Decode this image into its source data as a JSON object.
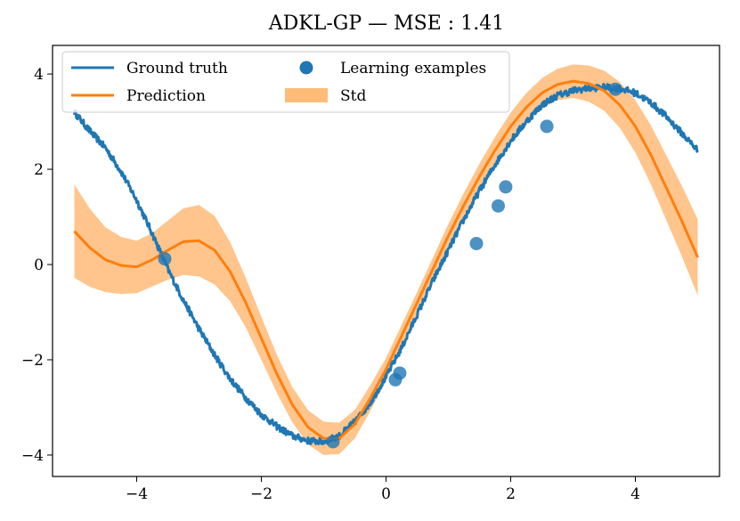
{
  "chart_data": {
    "type": "line",
    "title": "ADKL-GP — MSE : 1.41",
    "xlabel": "",
    "ylabel": "",
    "xlim": [
      -5.35,
      5.35
    ],
    "ylim": [
      -4.45,
      4.6
    ],
    "xticks": [
      -4,
      -2,
      0,
      2,
      4
    ],
    "yticks": [
      -4,
      -2,
      0,
      2,
      4
    ],
    "xtick_labels": [
      "−4",
      "−2",
      "0",
      "2",
      "4"
    ],
    "ytick_labels": [
      "−4",
      "−2",
      "0",
      "2",
      "4"
    ],
    "grid": false,
    "legend_position": "top-left",
    "colors": {
      "ground_truth": "#1f77b4",
      "prediction": "#ff7f0e",
      "std_fill": "#ffbb78",
      "points": "#1f77b4"
    },
    "legend": [
      {
        "key": "ground_truth",
        "label": "Ground truth",
        "kind": "line"
      },
      {
        "key": "examples",
        "label": "Learning examples",
        "kind": "marker"
      },
      {
        "key": "prediction",
        "label": "Prediction",
        "kind": "line"
      },
      {
        "key": "std",
        "label": "Std",
        "kind": "patch"
      }
    ],
    "ground_truth": {
      "x": [
        -5.0,
        -4.75,
        -4.5,
        -4.25,
        -4.0,
        -3.75,
        -3.5,
        -3.25,
        -3.0,
        -2.75,
        -2.5,
        -2.25,
        -2.0,
        -1.75,
        -1.5,
        -1.25,
        -1.0,
        -0.75,
        -0.5,
        -0.25,
        0.0,
        0.25,
        0.5,
        0.75,
        1.0,
        1.25,
        1.5,
        1.75,
        2.0,
        2.25,
        2.5,
        2.75,
        3.0,
        3.25,
        3.5,
        3.75,
        4.0,
        4.25,
        4.5,
        4.75,
        5.0
      ],
      "y": [
        3.2,
        2.8,
        2.45,
        1.95,
        1.35,
        0.65,
        -0.1,
        -0.75,
        -1.35,
        -1.9,
        -2.4,
        -2.8,
        -3.15,
        -3.4,
        -3.6,
        -3.7,
        -3.72,
        -3.6,
        -3.3,
        -2.9,
        -2.35,
        -1.75,
        -1.05,
        -0.35,
        0.3,
        0.95,
        1.55,
        2.1,
        2.6,
        3.0,
        3.35,
        3.55,
        3.65,
        3.7,
        3.72,
        3.7,
        3.6,
        3.4,
        3.1,
        2.75,
        2.4
      ]
    },
    "prediction": {
      "x": [
        -5.0,
        -4.75,
        -4.5,
        -4.25,
        -4.0,
        -3.75,
        -3.5,
        -3.25,
        -3.0,
        -2.75,
        -2.5,
        -2.25,
        -2.0,
        -1.75,
        -1.5,
        -1.25,
        -1.0,
        -0.75,
        -0.5,
        -0.25,
        0.0,
        0.25,
        0.5,
        0.75,
        1.0,
        1.25,
        1.5,
        1.75,
        2.0,
        2.25,
        2.5,
        2.75,
        3.0,
        3.25,
        3.5,
        3.75,
        4.0,
        4.25,
        4.5,
        4.75,
        5.0
      ],
      "mean": [
        0.7,
        0.35,
        0.1,
        -0.02,
        -0.05,
        0.1,
        0.3,
        0.48,
        0.5,
        0.3,
        -0.15,
        -0.8,
        -1.55,
        -2.3,
        -2.95,
        -3.42,
        -3.65,
        -3.65,
        -3.35,
        -2.8,
        -2.2,
        -1.5,
        -0.8,
        -0.1,
        0.6,
        1.25,
        1.85,
        2.4,
        2.9,
        3.3,
        3.6,
        3.78,
        3.85,
        3.8,
        3.65,
        3.35,
        2.9,
        2.3,
        1.6,
        0.9,
        0.15
      ],
      "std": [
        0.98,
        0.82,
        0.68,
        0.6,
        0.55,
        0.56,
        0.62,
        0.7,
        0.75,
        0.72,
        0.62,
        0.52,
        0.45,
        0.4,
        0.37,
        0.36,
        0.35,
        0.33,
        0.3,
        0.27,
        0.24,
        0.23,
        0.23,
        0.24,
        0.25,
        0.26,
        0.27,
        0.28,
        0.29,
        0.3,
        0.31,
        0.33,
        0.35,
        0.38,
        0.42,
        0.48,
        0.55,
        0.62,
        0.68,
        0.74,
        0.8
      ]
    },
    "examples": {
      "x": [
        -3.55,
        -0.85,
        0.15,
        0.22,
        1.45,
        1.8,
        1.92,
        2.58,
        3.68
      ],
      "y": [
        0.12,
        -3.72,
        -2.42,
        -2.28,
        0.44,
        1.23,
        1.63,
        2.9,
        3.68
      ]
    }
  }
}
